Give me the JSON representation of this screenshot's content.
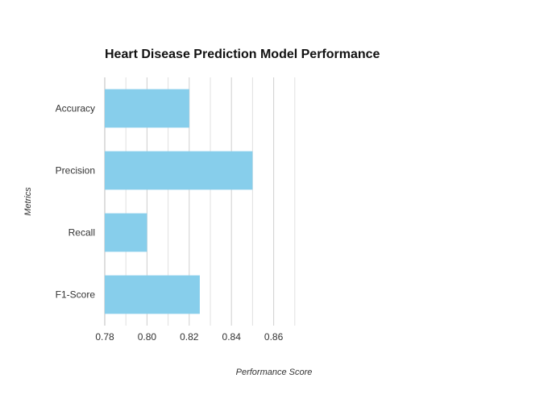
{
  "chart_data": {
    "type": "bar",
    "orientation": "horizontal",
    "title": "Heart Disease Prediction Model Performance",
    "xlabel": "Performance Score",
    "ylabel": "Metrics",
    "categories": [
      "Accuracy",
      "Precision",
      "Recall",
      "F1-Score"
    ],
    "values": [
      0.82,
      0.85,
      0.8,
      0.825
    ],
    "xlim": [
      0.78,
      0.87
    ],
    "xticks": [
      "0.78",
      "0.80",
      "0.82",
      "0.84",
      "0.86"
    ],
    "grid": true,
    "bar_color": "#87CEEB"
  }
}
